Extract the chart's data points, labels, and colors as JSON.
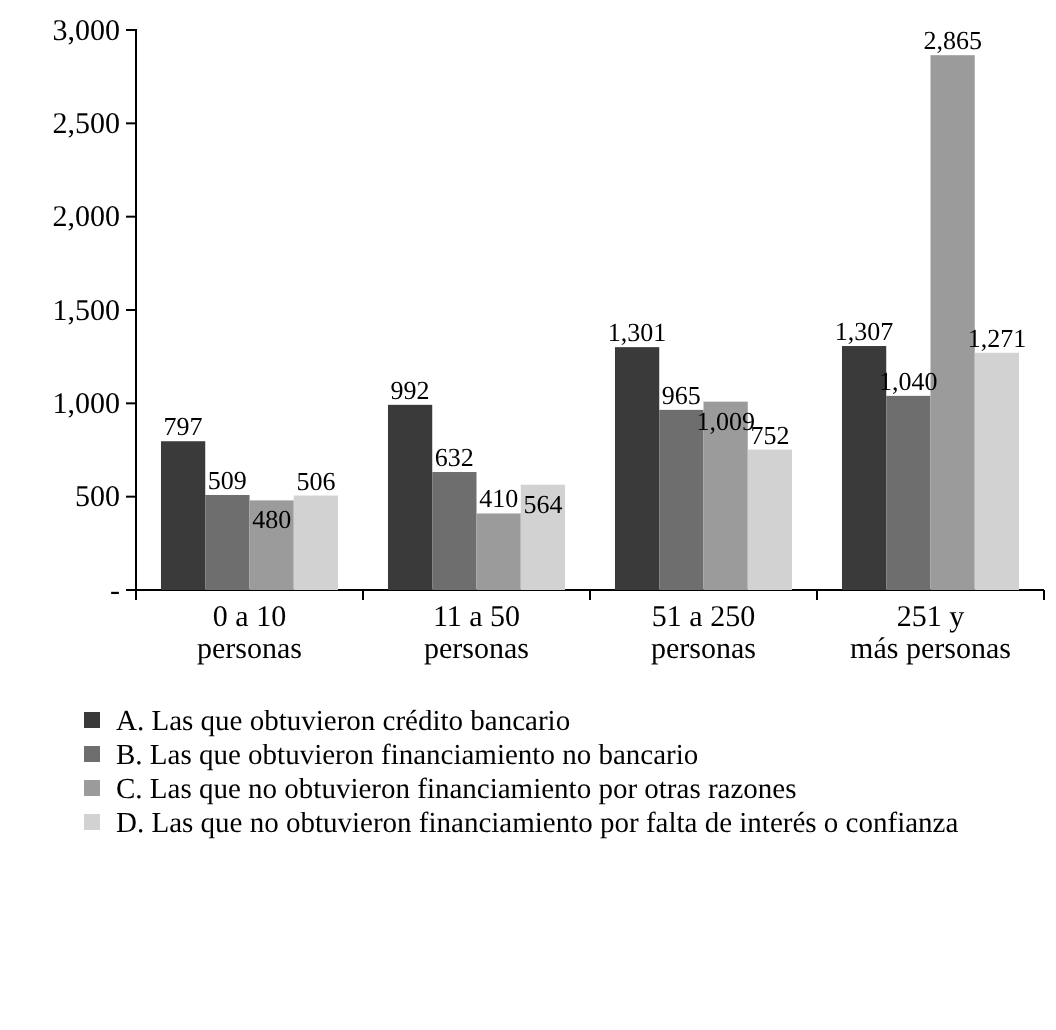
{
  "chart_data": {
    "type": "bar",
    "categories": [
      "0 a 10\npersonas",
      "11 a 50\npersonas",
      "51 a 250\npersonas",
      "251 y\nmás personas"
    ],
    "series": [
      {
        "name": "A. Las que obtuvieron crédito bancario",
        "color": "#3a3a3a",
        "values": [
          797,
          992,
          1301,
          1307
        ]
      },
      {
        "name": "B. Las que obtuvieron financiamiento no bancario",
        "color": "#6e6e6e",
        "values": [
          509,
          632,
          965,
          1040
        ]
      },
      {
        "name": "C. Las que no obtuvieron financiamiento por otras razones",
        "color": "#9b9b9b",
        "values": [
          480,
          410,
          1009,
          2865
        ]
      },
      {
        "name": "D. Las que no obtuvieron financiamiento por falta de interés o confianza",
        "color": "#d2d2d2",
        "values": [
          506,
          564,
          752,
          1271
        ]
      }
    ],
    "ylim": [
      0,
      3000
    ],
    "yticks": [
      {
        "value": 0,
        "label": "-"
      },
      {
        "value": 500,
        "label": "500"
      },
      {
        "value": 1000,
        "label": "1,000"
      },
      {
        "value": 1500,
        "label": "1,500"
      },
      {
        "value": 2000,
        "label": "2,000"
      },
      {
        "value": 2500,
        "label": "2,500"
      },
      {
        "value": 3000,
        "label": "3,000"
      }
    ],
    "value_labels": [
      [
        "797",
        "992",
        "1,301",
        "1,307"
      ],
      [
        "509",
        "632",
        "965",
        "1,040"
      ],
      [
        "480",
        "410",
        "1,009",
        "2,865"
      ],
      [
        "506",
        "564",
        "752",
        "1,271"
      ]
    ],
    "grid": false,
    "legend": "bottom"
  }
}
